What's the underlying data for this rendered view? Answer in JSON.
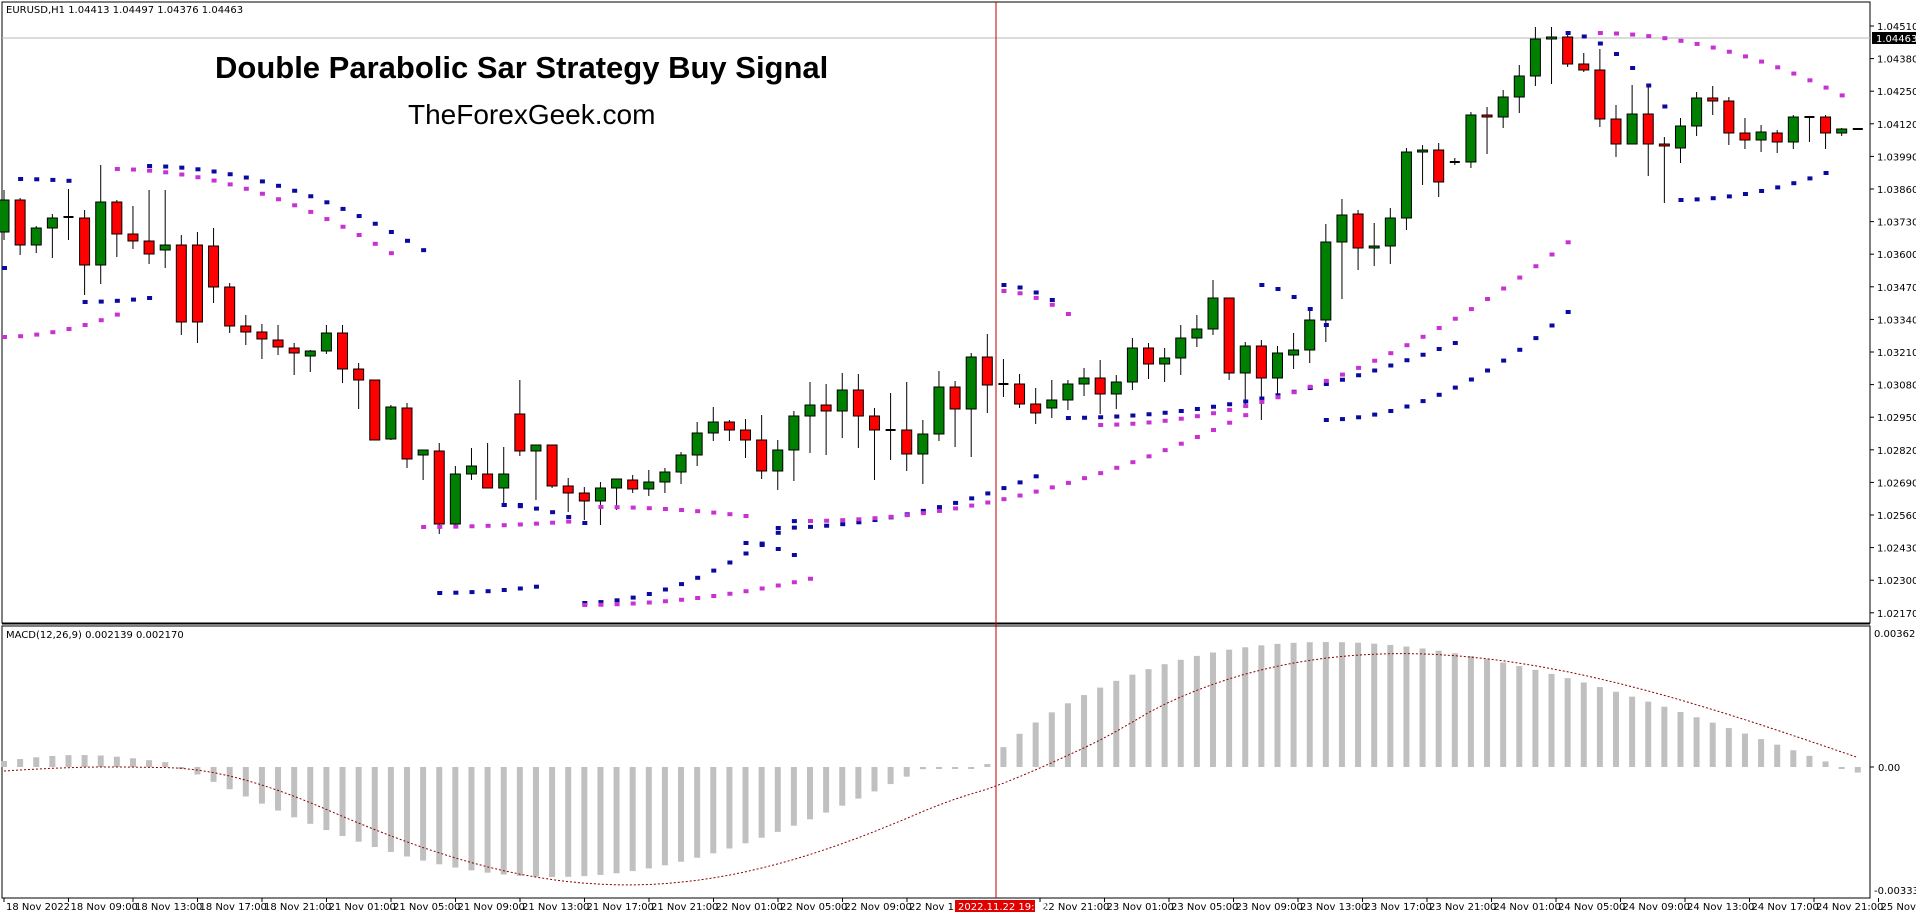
{
  "header": {
    "symbol_info": "EURUSD,H1  1.04413 1.04497 1.04376 1.04463",
    "title": "Double Parabolic Sar Strategy Buy Signal",
    "subtitle": "TheForexGeek.com"
  },
  "indicator": {
    "label": "MACD(12,26,9) 0.002139 0.002170"
  },
  "colors": {
    "bull": "#008000",
    "bear": "#ff0000",
    "wick": "#000000",
    "sar_fast": "#0a0aa0",
    "sar_slow": "#c832d2",
    "macd_hist": "#c0c0c0",
    "macd_signal": "#8b0000",
    "crosshair": "#c00000",
    "date_highlight_bg": "#e00000"
  },
  "price_axis": {
    "ticks": [
      "1.04510",
      "1.04380",
      "1.04250",
      "1.04120",
      "1.03990",
      "1.03860",
      "1.03730",
      "1.03600",
      "1.03470",
      "1.03340",
      "1.03210",
      "1.03080",
      "1.02950",
      "1.02820",
      "1.02690",
      "1.02560",
      "1.02430",
      "1.02300",
      "1.02170"
    ],
    "current_price": "1.04463"
  },
  "macd_axis": {
    "top": "0.003621",
    "zero": "0.00",
    "bottom": "-0.003336"
  },
  "time_axis": {
    "ticks": [
      "18 Nov 2022",
      "18 Nov 09:00",
      "18 Nov 13:00",
      "18 Nov 17:00",
      "18 Nov 21:00",
      "21 Nov 01:00",
      "21 Nov 05:00",
      "21 Nov 09:00",
      "21 Nov 13:00",
      "21 Nov 17:00",
      "21 Nov 21:00",
      "22 Nov 01:00",
      "22 Nov 05:00",
      "22 Nov 09:00",
      "22 Nov 13:00",
      "22 Nov 21:00",
      "23 Nov 01:00",
      "23 Nov 05:00",
      "23 Nov 09:00",
      "23 Nov 13:00",
      "23 Nov 17:00",
      "23 Nov 21:00",
      "24 Nov 01:00",
      "24 Nov 05:00",
      "24 Nov 09:00",
      "24 Nov 13:00",
      "24 Nov 17:00",
      "24 Nov 21:00",
      "25 Nov 01:00"
    ],
    "crosshair_label": "2022.11.22 19:00"
  },
  "chart_data": [
    {
      "type": "candlestick",
      "title": "Double Parabolic Sar Strategy Buy Signal",
      "symbol": "EURUSD",
      "timeframe": "H1",
      "ylim": [
        1.0217,
        1.0456
      ],
      "yticks": [
        1.0451,
        1.0438,
        1.0425,
        1.0412,
        1.0399,
        1.0386,
        1.0373,
        1.036,
        1.0347,
        1.0334,
        1.0321,
        1.0308,
        1.0295,
        1.0282,
        1.0269,
        1.0256,
        1.0243,
        1.023,
        1.0217
      ],
      "ohlc_pixel_note": "Candles listed as [open_y, close_y, high_y, low_y] in chart pixel space (lower y = higher price)",
      "candles": [
        [
          232,
          200,
          190,
          240
        ],
        [
          200,
          245,
          198,
          255
        ],
        [
          245,
          228,
          226,
          253
        ],
        [
          228,
          218,
          214,
          258
        ],
        [
          217,
          217,
          189,
          240
        ],
        [
          218,
          265,
          210,
          295
        ],
        [
          265,
          202,
          165,
          284
        ],
        [
          202,
          234,
          200,
          257
        ],
        [
          234,
          241,
          206,
          249
        ],
        [
          241,
          254,
          190,
          264
        ],
        [
          250,
          245,
          190,
          268
        ],
        [
          245,
          322,
          235,
          335
        ],
        [
          245,
          322,
          232,
          343
        ],
        [
          246,
          287,
          228,
          303
        ],
        [
          287,
          326,
          283,
          333
        ],
        [
          326,
          332,
          315,
          345
        ],
        [
          332,
          339,
          324,
          359
        ],
        [
          340,
          347,
          325,
          355
        ],
        [
          348,
          353,
          343,
          375
        ],
        [
          356,
          351,
          350,
          372
        ],
        [
          351,
          333,
          325,
          354
        ],
        [
          333,
          369,
          325,
          383
        ],
        [
          369,
          380,
          363,
          409
        ],
        [
          380,
          440,
          380,
          440
        ],
        [
          439,
          407,
          405,
          440
        ],
        [
          408,
          459,
          403,
          468
        ],
        [
          455,
          450,
          452,
          480
        ],
        [
          451,
          524,
          443,
          534
        ],
        [
          524,
          474,
          466,
          525
        ],
        [
          474,
          466,
          448,
          480
        ],
        [
          474,
          488,
          443,
          485
        ],
        [
          488,
          474,
          447,
          503
        ],
        [
          414,
          451,
          380,
          456
        ],
        [
          451,
          445,
          446,
          500
        ],
        [
          445,
          486,
          474,
          488
        ],
        [
          486,
          493,
          478,
          512
        ],
        [
          493,
          501,
          487,
          520
        ],
        [
          501,
          488,
          482,
          525
        ],
        [
          488,
          479,
          479,
          510
        ],
        [
          480,
          489,
          475,
          493
        ],
        [
          489,
          482,
          470,
          496
        ],
        [
          482,
          472,
          468,
          493
        ],
        [
          472,
          455,
          452,
          484
        ],
        [
          455,
          433,
          422,
          466
        ],
        [
          433,
          422,
          407,
          441
        ],
        [
          422,
          430,
          420,
          441
        ],
        [
          430,
          440,
          419,
          458
        ],
        [
          440,
          471,
          415,
          479
        ],
        [
          471,
          450,
          440,
          490
        ],
        [
          450,
          416,
          411,
          481
        ],
        [
          416,
          405,
          382,
          453
        ],
        [
          405,
          411,
          384,
          455
        ],
        [
          411,
          390,
          373,
          438
        ],
        [
          390,
          416,
          374,
          448
        ],
        [
          416,
          430,
          408,
          480
        ],
        [
          430,
          430,
          393,
          460
        ],
        [
          430,
          454,
          382,
          471
        ],
        [
          454,
          434,
          420,
          484
        ],
        [
          434,
          387,
          371,
          441
        ],
        [
          387,
          409,
          381,
          447
        ],
        [
          409,
          357,
          353,
          457
        ],
        [
          357,
          385,
          334,
          413
        ],
        [
          385,
          384,
          359,
          397
        ],
        [
          384,
          404,
          374,
          408
        ],
        [
          404,
          413,
          388,
          424
        ],
        [
          408,
          400,
          380,
          418
        ],
        [
          400,
          384,
          380,
          410
        ],
        [
          384,
          378,
          368,
          396
        ],
        [
          378,
          394,
          360,
          414
        ],
        [
          394,
          382,
          375,
          409
        ],
        [
          382,
          348,
          338,
          390
        ],
        [
          348,
          364,
          343,
          379
        ],
        [
          364,
          358,
          348,
          382
        ],
        [
          358,
          338,
          325,
          375
        ],
        [
          338,
          329,
          315,
          347
        ],
        [
          329,
          298,
          280,
          335
        ],
        [
          298,
          373,
          298,
          380
        ],
        [
          373,
          346,
          342,
          405
        ],
        [
          346,
          378,
          340,
          420
        ],
        [
          378,
          353,
          346,
          394
        ],
        [
          355,
          350,
          333,
          369
        ],
        [
          350,
          320,
          307,
          363
        ],
        [
          320,
          242,
          224,
          342
        ],
        [
          242,
          215,
          199,
          299
        ],
        [
          214,
          248,
          210,
          270
        ],
        [
          248,
          246,
          223,
          266
        ],
        [
          246,
          218,
          208,
          264
        ],
        [
          218,
          152,
          148,
          230
        ],
        [
          152,
          150,
          145,
          185
        ],
        [
          150,
          182,
          143,
          197
        ],
        [
          162,
          162,
          158,
          165
        ],
        [
          162,
          115,
          112,
          168
        ],
        [
          115,
          117,
          107,
          154
        ],
        [
          117,
          97,
          90,
          128
        ],
        [
          97,
          76,
          65,
          113
        ],
        [
          76,
          39,
          27,
          86
        ],
        [
          39,
          37,
          27,
          84
        ],
        [
          37,
          64,
          34,
          67
        ],
        [
          64,
          70,
          53,
          72
        ],
        [
          70,
          119,
          49,
          127
        ],
        [
          119,
          144,
          105,
          157
        ],
        [
          144,
          114,
          85,
          144
        ],
        [
          114,
          144,
          85,
          176
        ],
        [
          144,
          146,
          137,
          203
        ],
        [
          148,
          126,
          118,
          163
        ],
        [
          126,
          98,
          92,
          136
        ],
        [
          98,
          101,
          86,
          115
        ],
        [
          101,
          133,
          97,
          145
        ],
        [
          133,
          140,
          118,
          149
        ],
        [
          140,
          132,
          125,
          152
        ],
        [
          133,
          142,
          130,
          153
        ],
        [
          142,
          117,
          115,
          149
        ],
        [
          117,
          117,
          116,
          142
        ],
        [
          117,
          133,
          115,
          149
        ],
        [
          133,
          129,
          128,
          136
        ],
        [
          129,
          129,
          129,
          129
        ]
      ],
      "series": [
        {
          "name": "Parabolic SAR (fast)",
          "color": "#0a0aa0"
        },
        {
          "name": "Parabolic SAR (slow)",
          "color": "#c832d2"
        }
      ]
    },
    {
      "type": "bar+line",
      "title": "MACD(12,26,9)",
      "values_last": {
        "main": 0.002139,
        "signal": 0.00217
      },
      "ylim": [
        -0.003336,
        0.003621
      ],
      "zero_line": 0
    }
  ]
}
